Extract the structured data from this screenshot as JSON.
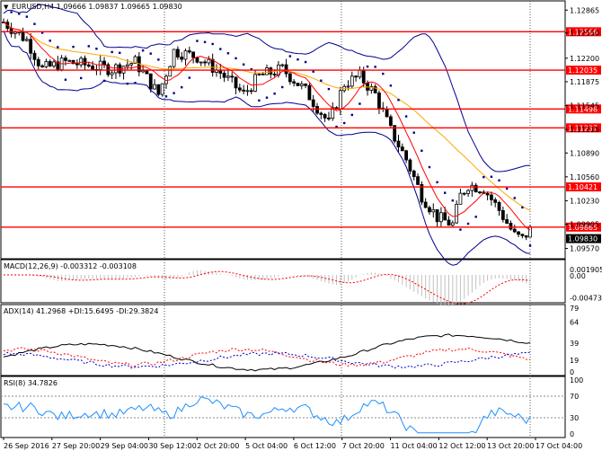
{
  "colors": {
    "background": "#ffffff",
    "grid": "#000000",
    "level": "#ff0000",
    "bb": "#00008b",
    "ma_fast": "#ff0000",
    "ma_slow": "#ffa500",
    "sar": "#00008b",
    "adx": "#000000",
    "plus_di": "#ff0000",
    "minus_di": "#0000cd",
    "rsi": "#1e90ff",
    "macd": "#ff0000",
    "macd_hist": "#c0c0c0"
  },
  "icons": {
    "menu": "triangle-down-icon"
  },
  "chart_data": [
    {
      "type": "candlestick",
      "title": "EURUSD,H4  1.09666 1.09837 1.09665 1.09830",
      "ylim": [
        1.0944,
        1.1298
      ],
      "y_ticks": [
        "1.12865",
        "1.12550",
        "1.12200",
        "1.11875",
        "1.11545",
        "1.11215",
        "1.10890",
        "1.10560",
        "1.10230",
        "1.09905",
        "1.09570"
      ],
      "x_ticks": [
        "26 Sep 2016",
        "27 Sep 20:00",
        "29 Sep 04:00",
        "30 Sep 12:00",
        "2 Oct 20:00",
        "5 Oct 04:00",
        "6 Oct 12:00",
        "7 Oct 20:00",
        "11 Oct 04:00",
        "12 Oct 12:00",
        "13 Oct 20:00",
        "17 Oct 04:00"
      ],
      "levels": [
        {
          "value": 1.12566,
          "label": "1.12566"
        },
        {
          "value": 1.12035,
          "label": "1.12035"
        },
        {
          "value": 1.11498,
          "label": "1.11498"
        },
        {
          "value": 1.11237,
          "label": "1.11237"
        },
        {
          "value": 1.10421,
          "label": "1.10421"
        },
        {
          "value": 1.09865,
          "label": "1.09865"
        }
      ],
      "last_price": 1.0983
    },
    {
      "type": "line",
      "title": "MACD(12,26,9) -0.003312 -0.003108",
      "y_ticks": [
        "0.001905",
        "0.00",
        "-0.004738"
      ]
    },
    {
      "type": "line",
      "title": "ADX(14) 41.2968 +DI:15.6495 -DI:29.3824",
      "y_ticks": [
        "79",
        "64",
        "39",
        "19",
        "0"
      ]
    },
    {
      "type": "line",
      "title": "RSI(8) 34.7826",
      "y_ticks": [
        "100",
        "70",
        "30",
        "0"
      ]
    }
  ]
}
